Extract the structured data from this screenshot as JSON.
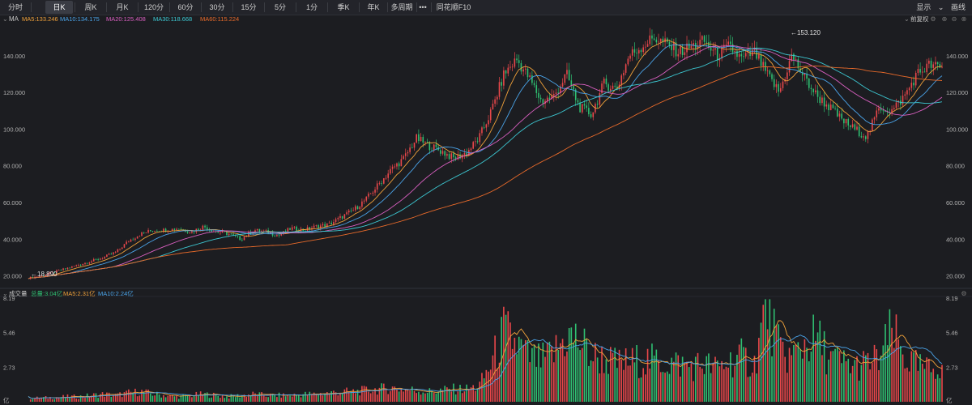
{
  "toolbar": {
    "tabs": [
      {
        "label": "分时",
        "active": false
      },
      {
        "label": "日K",
        "active": true
      },
      {
        "label": "周K",
        "active": false
      },
      {
        "label": "月K",
        "active": false
      },
      {
        "label": "120分",
        "active": false
      },
      {
        "label": "60分",
        "active": false
      },
      {
        "label": "30分",
        "active": false
      },
      {
        "label": "15分",
        "active": false
      },
      {
        "label": "5分",
        "active": false
      },
      {
        "label": "1分",
        "active": false
      },
      {
        "label": "季K",
        "active": false
      },
      {
        "label": "年K",
        "active": false
      },
      {
        "label": "多周期",
        "active": false
      },
      {
        "label": "•••",
        "active": false
      },
      {
        "label": "同花顺F10",
        "active": false
      }
    ],
    "display_label": "显示",
    "draw_label": "画线"
  },
  "price_panel": {
    "indicator_name": "MA",
    "ma_labels": [
      {
        "text": "MA5:133.246",
        "color": "#f0a13a"
      },
      {
        "text": "MA10:134.175",
        "color": "#4aa3e8"
      },
      {
        "text": "MA20:125.408",
        "color": "#d95fc0"
      },
      {
        "text": "MA30:118.668",
        "color": "#3cc7d1"
      },
      {
        "text": "MA60:115.224",
        "color": "#e86a2a"
      }
    ],
    "adjust_label": "前复权",
    "high_marker": "←153.120",
    "low_marker": "←18.890"
  },
  "volume_panel": {
    "name": "成交量",
    "labels": [
      {
        "text": "总量:3.04亿",
        "color": "#2fbf71"
      },
      {
        "text": "MA5:2.31亿",
        "color": "#f0a13a"
      },
      {
        "text": "MA10:2.24亿",
        "color": "#4aa3e8"
      }
    ],
    "unit": "亿"
  },
  "chart_data": [
    {
      "type": "candlestick",
      "y_ticks": [
        "140.000",
        "120.000",
        "100.000",
        "80.000",
        "60.000",
        "40.000",
        "20.000"
      ],
      "ylim": [
        15,
        158
      ],
      "high": 153.12,
      "low": 18.89,
      "grid": false,
      "close_path": [
        18.9,
        20,
        22,
        24,
        26,
        28,
        30,
        33,
        39,
        43,
        45,
        45,
        46,
        44,
        47,
        44,
        43,
        40,
        45,
        44,
        42,
        46,
        45,
        47,
        48,
        52,
        56,
        62,
        70,
        78,
        84,
        95,
        91,
        88,
        84,
        87,
        95,
        110,
        130,
        138,
        128,
        115,
        118,
        130,
        112,
        108,
        125,
        122,
        140,
        145,
        150,
        146,
        142,
        145,
        148,
        140,
        145,
        138,
        142,
        130,
        120,
        140,
        128,
        118,
        112,
        105,
        100,
        96,
        112,
        110,
        118,
        130,
        135,
        133
      ],
      "ma_series": [
        {
          "name": "MA5",
          "color": "#f0a13a",
          "last": 133.246
        },
        {
          "name": "MA10",
          "color": "#4aa3e8",
          "last": 134.175
        },
        {
          "name": "MA20",
          "color": "#d95fc0",
          "last": 125.408
        },
        {
          "name": "MA30",
          "color": "#3cc7d1",
          "last": 118.668
        },
        {
          "name": "MA60",
          "color": "#e86a2a",
          "last": 115.224
        }
      ]
    },
    {
      "type": "bar",
      "y_ticks": [
        "8.19",
        "5.46",
        "2.73"
      ],
      "ylim": [
        0,
        8.19
      ],
      "unit": "亿",
      "volume_path": [
        0.3,
        0.3,
        0.35,
        0.4,
        0.4,
        0.5,
        0.6,
        0.5,
        0.7,
        0.8,
        0.6,
        0.5,
        0.4,
        0.5,
        0.6,
        0.5,
        0.4,
        0.5,
        0.6,
        0.5,
        0.5,
        0.5,
        0.6,
        0.6,
        0.7,
        0.8,
        0.8,
        0.9,
        1.0,
        1.1,
        1.0,
        0.9,
        0.8,
        0.9,
        1.0,
        1.0,
        1.2,
        3.0,
        5.5,
        4.5,
        3.5,
        3.2,
        3.8,
        5.2,
        4.8,
        3.6,
        3.4,
        3.0,
        3.1,
        3.3,
        3.2,
        3.1,
        3.0,
        2.8,
        3.0,
        2.6,
        3.2,
        3.5,
        2.9,
        7.8,
        4.0,
        3.5,
        4.6,
        5.0,
        3.5,
        3.1,
        2.8,
        3.0,
        3.4,
        5.5,
        3.5,
        2.8,
        2.5,
        3.04
      ],
      "last_total": 3.04,
      "ma5_last": 2.31,
      "ma10_last": 2.24
    }
  ]
}
